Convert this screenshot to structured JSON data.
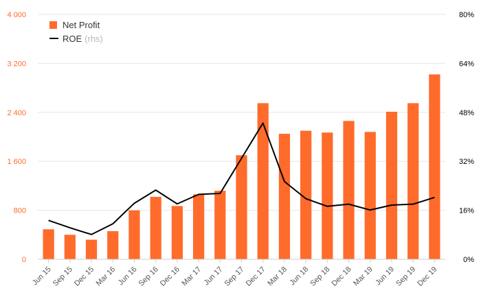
{
  "chart_data": {
    "type": "bar",
    "categories": [
      "Jun 15",
      "Sep 15",
      "Dec 15",
      "Mar 16",
      "Jun 16",
      "Sep 16",
      "Dec 16",
      "Mar 17",
      "Jun 17",
      "Sep 17",
      "Dec 17",
      "Mar 18",
      "Jun 18",
      "Sep 18",
      "Dec 18",
      "Mar 19",
      "Jun 19",
      "Sep 19",
      "Dec 19"
    ],
    "series": [
      {
        "name": "Net Profit",
        "type": "bar",
        "axis": "left",
        "color": "#ff6b2b",
        "values": [
          490,
          400,
          320,
          460,
          800,
          1020,
          870,
          1060,
          1120,
          1700,
          2550,
          2050,
          2100,
          2070,
          2260,
          2080,
          2410,
          2550,
          3020
        ]
      },
      {
        "name": "ROE",
        "name_suffix": "(rhs)",
        "type": "line",
        "axis": "right",
        "color": "#000000",
        "values": [
          12.7,
          10.3,
          8.1,
          11.6,
          18.3,
          22.6,
          18.1,
          21.2,
          21.5,
          33.0,
          44.5,
          25.4,
          19.8,
          17.3,
          18.0,
          16.1,
          17.7,
          18.0,
          20.2
        ]
      }
    ],
    "left_axis": {
      "min": 0,
      "max": 4000,
      "ticks": [
        0,
        800,
        1600,
        2400,
        3200,
        4000
      ],
      "tick_labels": [
        "0",
        "800",
        "1 600",
        "2 400",
        "3 200",
        "4 000"
      ],
      "color": "#ff6b2b"
    },
    "right_axis": {
      "min": 0,
      "max": 80,
      "ticks": [
        0,
        16,
        32,
        48,
        64,
        80
      ],
      "tick_labels": [
        "0%",
        "16%",
        "32%",
        "48%",
        "64%",
        "80%"
      ],
      "color": "#000000"
    },
    "grid": true,
    "legend_position": "top-left"
  },
  "legend": {
    "net_profit": "Net Profit",
    "roe": "ROE",
    "roe_suffix": "(rhs)"
  }
}
